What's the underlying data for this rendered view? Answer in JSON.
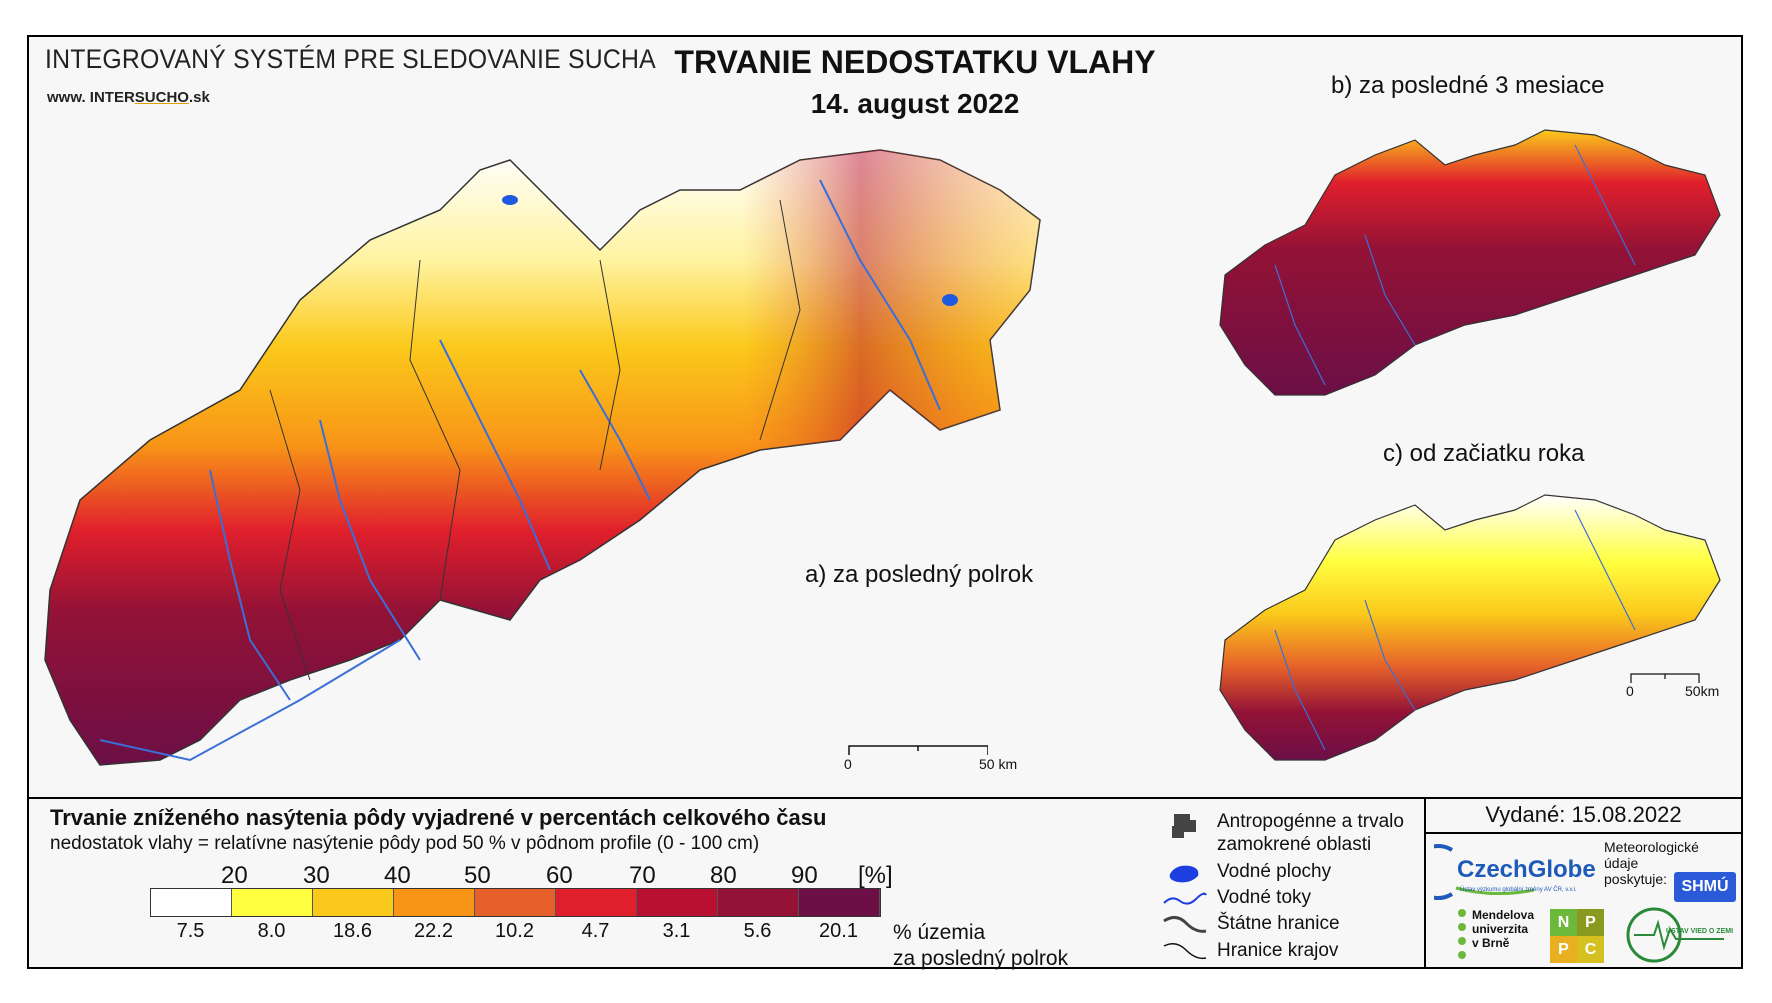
{
  "header": {
    "system_title": "INTEGROVANÝ SYSTÉM PRE SLEDOVANIE SUCHA",
    "website_prefix": "www. INTER",
    "website_sucho": "SUCHO",
    "website_suffix": ".sk",
    "main_title": "TRVANIE NEDOSTATKU VLAHY",
    "date": "14. august 2022"
  },
  "maps": {
    "a_label": "a) za posledný polrok",
    "b_label": "b) za posledné 3 mesiace",
    "c_label": "c) od začiatku roka",
    "scale_main_0": "0",
    "scale_main_50": "50 km",
    "scale_small_0": "0",
    "scale_small_50": "50km"
  },
  "legend": {
    "title": "Trvanie zníženého nasýtenia pôdy vyjadrené v percentách celkového času",
    "subtitle": "nedostatok vlahy = relatívne nasýtenie pôdy pod 50 % v pôdnom profile (0 - 100 cm)",
    "ticks": [
      "20",
      "30",
      "40",
      "50",
      "60",
      "70",
      "80",
      "90",
      "[%]"
    ],
    "colors": [
      "#ffffff",
      "#ffff40",
      "#fbc91b",
      "#f89517",
      "#e5602a",
      "#e01f2c",
      "#b90f30",
      "#931236",
      "#6b0f46"
    ],
    "area_percent": [
      "7.5",
      "8.0",
      "18.6",
      "22.2",
      "10.2",
      "4.7",
      "3.1",
      "5.6",
      "20.1"
    ],
    "area_note_1": "% územia",
    "area_note_2": "za posledný polrok"
  },
  "symbols": {
    "urban": "Antropogénne a trvalo zamokrené oblasti",
    "water_bodies": "Vodné plochy",
    "rivers": "Vodné toky",
    "state_border": "Štátne hranice",
    "region_border": "Hranice krajov"
  },
  "credits": {
    "issued": "Vydané: 15.08.2022",
    "czechglobe": "CzechGlobe",
    "czechglobe_sub": "Ústav výzkumu globální změny AV ČR, v.v.i.",
    "met_data_1": "Meteorologické",
    "met_data_2": "údaje",
    "met_data_3": "poskytuje:",
    "shmu": "SHMÚ",
    "mendel_1": "Mendelova",
    "mendel_2": "univerzita",
    "mendel_3": "v Brně",
    "nppc": [
      "N",
      "P",
      "P",
      "C"
    ],
    "uvz": "ÚSTAV VIED O ZEMI"
  }
}
